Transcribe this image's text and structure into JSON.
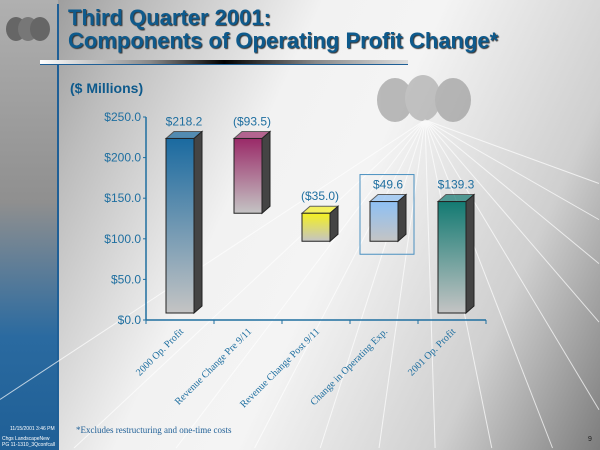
{
  "header": {
    "title_line1": "Third Quarter 2001:",
    "title_line2": "Components of Operating Profit Change*",
    "units": "($ Millions)"
  },
  "footer": {
    "note": "*Excludes restructuring and one-time costs",
    "date": "11/15/2001 3:46 PM",
    "file1": "Chgs LandscapeNew",
    "file2": "PG 11-1310_3Qconfcall",
    "page": "9"
  },
  "chart_data": {
    "type": "bar",
    "subtype": "waterfall",
    "categories": [
      "2000 Op. Profit",
      "Revenue Change Pre 9/11",
      "Revenue Change Post 9/11",
      "Change in Operating Exp.",
      "2001 Op. Profit"
    ],
    "values": [
      218.2,
      -93.5,
      -35.0,
      49.6,
      139.3
    ],
    "ranges": [
      [
        0,
        218.2
      ],
      [
        124.7,
        218.2
      ],
      [
        89.7,
        124.7
      ],
      [
        89.7,
        139.3
      ],
      [
        0,
        139.3
      ]
    ],
    "data_labels": [
      "$218.2",
      "($93.5)",
      "($35.0)",
      "$49.6",
      "$139.3"
    ],
    "colors": [
      "#1a6aa0",
      "#9a2a68",
      "#f4f020",
      "#8ec0f4",
      "#137a72"
    ],
    "yticks": [
      "$0.0",
      "$50.0",
      "$100.0",
      "$150.0",
      "$200.0",
      "$250.0"
    ],
    "ylim": [
      0,
      250
    ],
    "title": "",
    "xlabel": "",
    "ylabel": "",
    "grid": false,
    "highlighted_category": "Change in Operating Exp."
  }
}
